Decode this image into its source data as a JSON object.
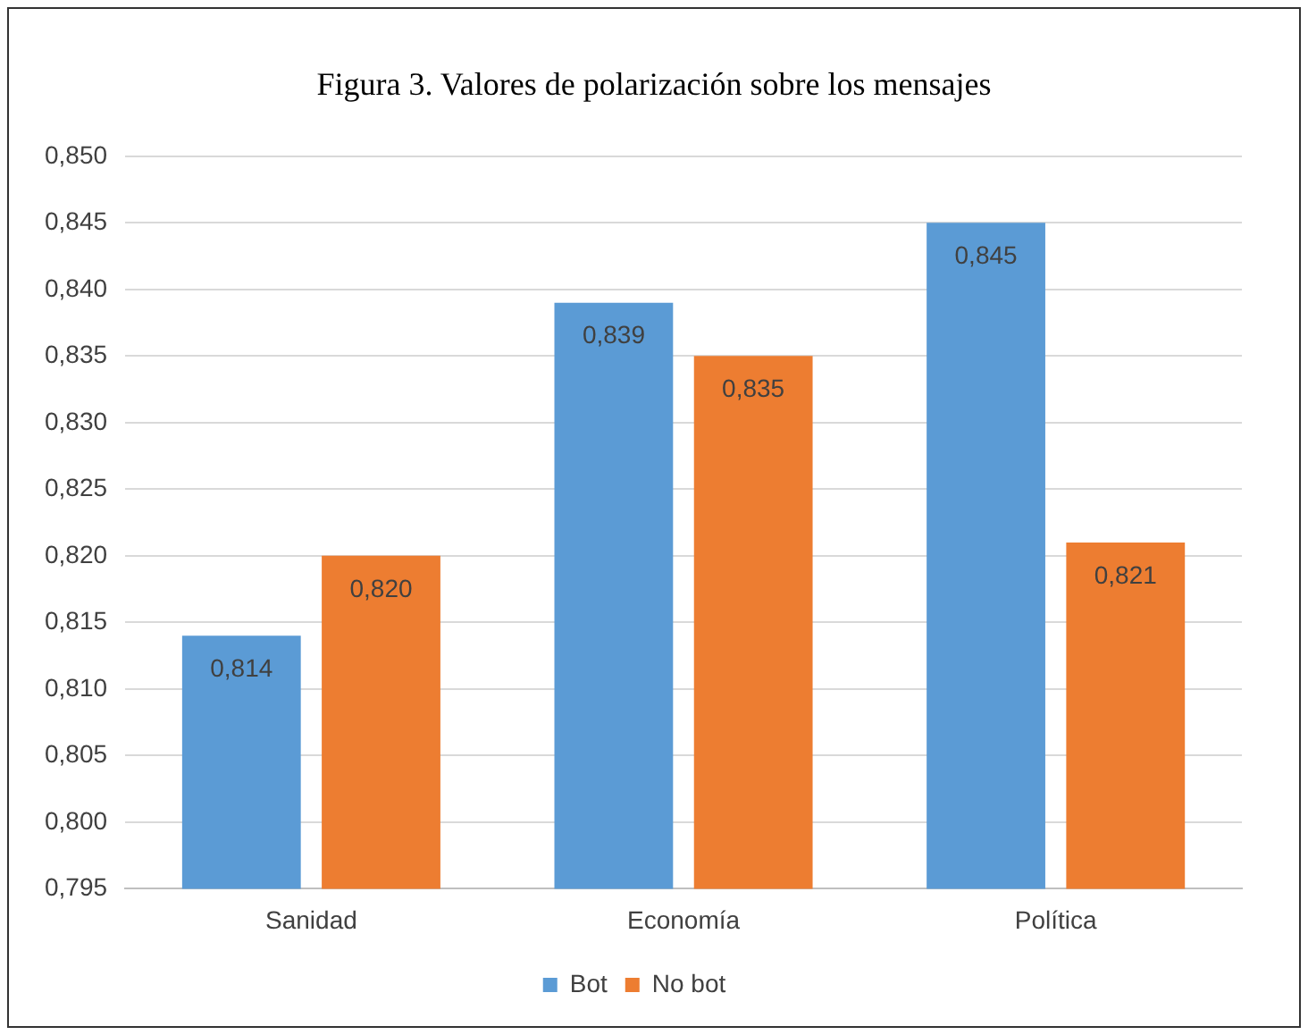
{
  "chart_data": {
    "type": "bar",
    "title": "Figura 3. Valores de polarización sobre los mensajes",
    "categories": [
      "Sanidad",
      "Economía",
      "Política"
    ],
    "series": [
      {
        "name": "Bot",
        "color": "#5b9bd5",
        "values": [
          0.814,
          0.839,
          0.845
        ],
        "value_labels": [
          "0,814",
          "0,839",
          "0,845"
        ]
      },
      {
        "name": "No bot",
        "color": "#ed7d31",
        "values": [
          0.82,
          0.835,
          0.821
        ],
        "value_labels": [
          "0,820",
          "0,835",
          "0,821"
        ]
      }
    ],
    "ylim": [
      0.795,
      0.85
    ],
    "yticks": [
      {
        "value": 0.795,
        "label": "0,795"
      },
      {
        "value": 0.8,
        "label": "0,800"
      },
      {
        "value": 0.805,
        "label": "0,805"
      },
      {
        "value": 0.81,
        "label": "0,810"
      },
      {
        "value": 0.815,
        "label": "0,815"
      },
      {
        "value": 0.82,
        "label": "0,820"
      },
      {
        "value": 0.825,
        "label": "0,825"
      },
      {
        "value": 0.83,
        "label": "0,830"
      },
      {
        "value": 0.835,
        "label": "0,835"
      },
      {
        "value": 0.84,
        "label": "0,840"
      },
      {
        "value": 0.845,
        "label": "0,845"
      },
      {
        "value": 0.85,
        "label": "0,850"
      }
    ],
    "grid": "y",
    "legend": "bottom"
  }
}
